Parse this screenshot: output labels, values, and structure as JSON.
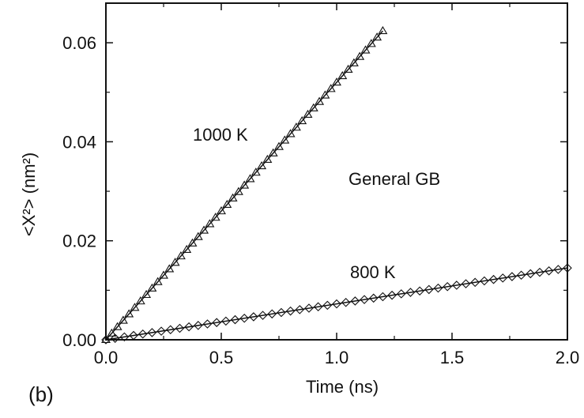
{
  "chart_data": {
    "type": "scatter",
    "panel_label": "(b)",
    "xlabel": "Time (ns)",
    "ylabel": "<X²> (nm²)",
    "xlim": [
      0,
      2.0
    ],
    "ylim": [
      0,
      0.068
    ],
    "x_ticks": [
      "0.0",
      "0.5",
      "1.0",
      "1.5",
      "2.0"
    ],
    "y_ticks": [
      "0.00",
      "0.02",
      "0.04",
      "0.06"
    ],
    "annotations": {
      "label_1000": "1000 K",
      "label_800": "800 K",
      "label_gb": "General GB"
    },
    "series": [
      {
        "marker": "triangle",
        "fit_line": true,
        "x": [
          0.0,
          0.025,
          0.05,
          0.075,
          0.1,
          0.125,
          0.15,
          0.175,
          0.2,
          0.225,
          0.25,
          0.275,
          0.3,
          0.325,
          0.35,
          0.375,
          0.4,
          0.425,
          0.45,
          0.475,
          0.5,
          0.525,
          0.55,
          0.575,
          0.6,
          0.625,
          0.65,
          0.675,
          0.7,
          0.725,
          0.75,
          0.775,
          0.8,
          0.825,
          0.85,
          0.875,
          0.9,
          0.925,
          0.95,
          0.975,
          1.0,
          1.025,
          1.05,
          1.075,
          1.1,
          1.125,
          1.15,
          1.175,
          1.2
        ],
        "y": [
          0.0,
          0.0013,
          0.0026,
          0.0039,
          0.0052,
          0.0065,
          0.0078,
          0.0091,
          0.0104,
          0.0117,
          0.013,
          0.0143,
          0.0156,
          0.0169,
          0.0182,
          0.0195,
          0.0208,
          0.0221,
          0.0234,
          0.0247,
          0.026,
          0.0273,
          0.0286,
          0.0299,
          0.0312,
          0.0325,
          0.0338,
          0.0351,
          0.0364,
          0.0377,
          0.039,
          0.0403,
          0.0416,
          0.0429,
          0.0442,
          0.0455,
          0.0468,
          0.0481,
          0.0494,
          0.0507,
          0.052,
          0.0533,
          0.0546,
          0.0559,
          0.0572,
          0.0585,
          0.0598,
          0.0611,
          0.0624
        ]
      },
      {
        "marker": "diamond",
        "fit_line": true,
        "x": [
          0.0,
          0.04,
          0.08,
          0.12,
          0.16,
          0.2,
          0.24,
          0.28,
          0.32,
          0.36,
          0.4,
          0.44,
          0.48,
          0.52,
          0.56,
          0.6,
          0.64,
          0.68,
          0.72,
          0.76,
          0.8,
          0.84,
          0.88,
          0.92,
          0.96,
          1.0,
          1.04,
          1.08,
          1.12,
          1.16,
          1.2,
          1.24,
          1.28,
          1.32,
          1.36,
          1.4,
          1.44,
          1.48,
          1.52,
          1.56,
          1.6,
          1.64,
          1.68,
          1.72,
          1.76,
          1.8,
          1.84,
          1.88,
          1.92,
          1.96,
          2.0
        ],
        "y": [
          0.0,
          0.00029,
          0.00058,
          0.00087,
          0.00116,
          0.00145,
          0.00174,
          0.00203,
          0.00232,
          0.00261,
          0.0029,
          0.00319,
          0.00348,
          0.00377,
          0.00406,
          0.00435,
          0.00464,
          0.00493,
          0.00522,
          0.00551,
          0.0058,
          0.00609,
          0.00638,
          0.00667,
          0.00696,
          0.00725,
          0.00754,
          0.00783,
          0.00812,
          0.00841,
          0.0087,
          0.00899,
          0.00928,
          0.00957,
          0.00986,
          0.01015,
          0.01044,
          0.01073,
          0.01102,
          0.01131,
          0.0116,
          0.01189,
          0.01218,
          0.01247,
          0.01276,
          0.01305,
          0.01334,
          0.01363,
          0.01392,
          0.01421,
          0.0145
        ]
      }
    ]
  }
}
